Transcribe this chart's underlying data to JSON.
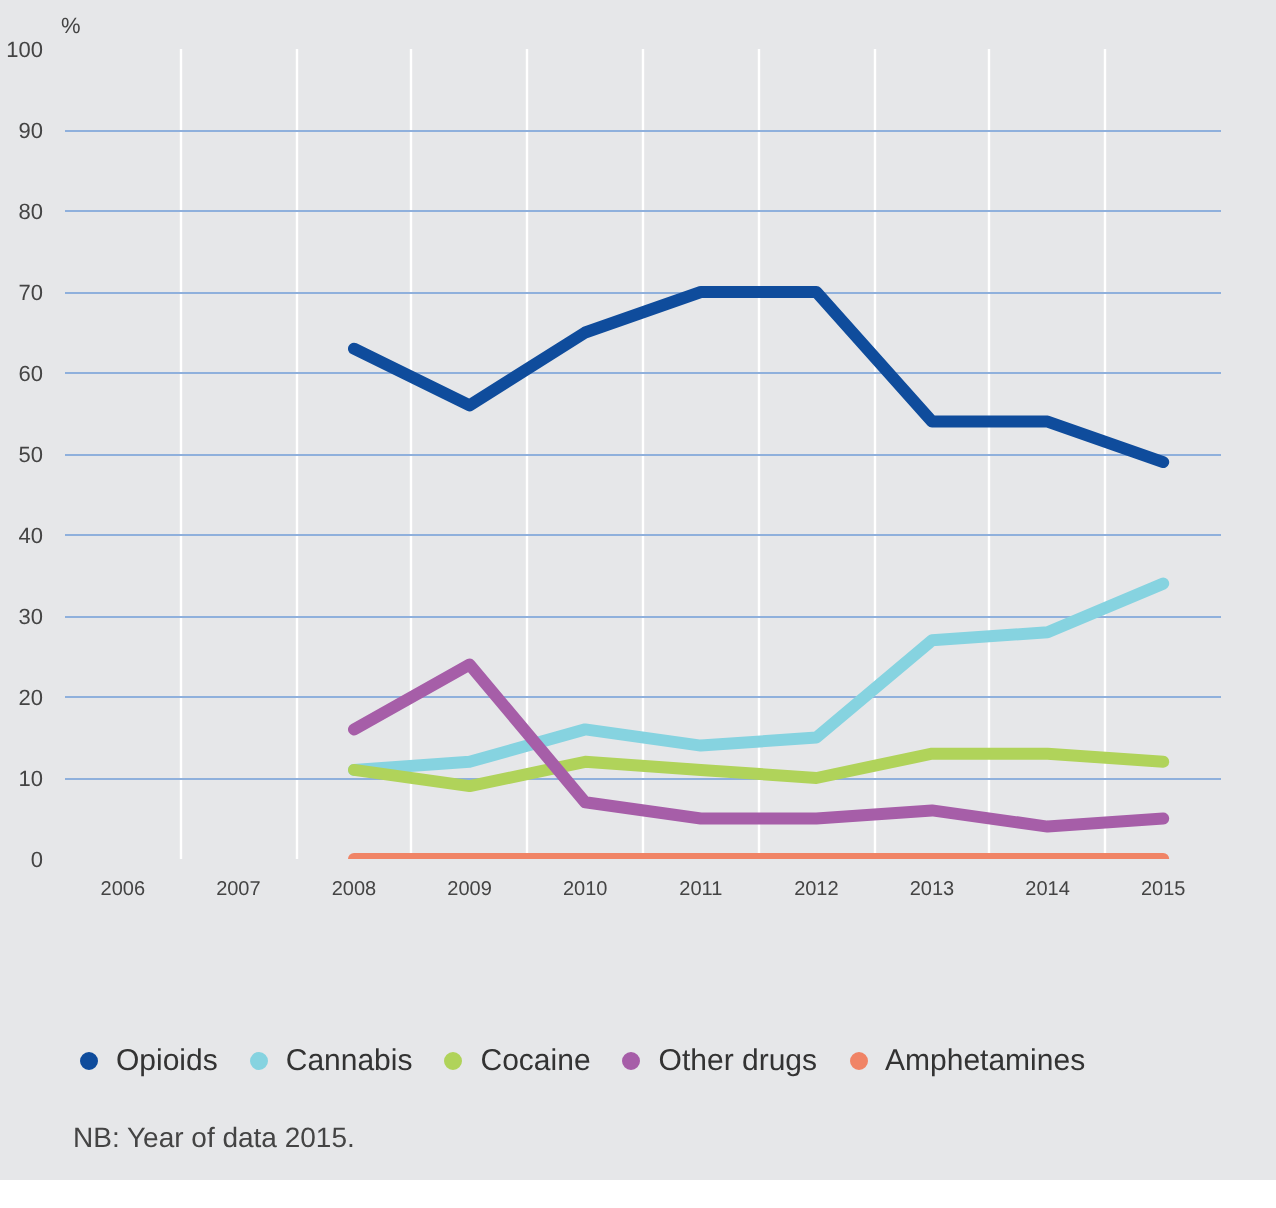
{
  "chart_data": {
    "type": "line",
    "ylabel": "%",
    "categories": [
      "2006",
      "2007",
      "2008",
      "2009",
      "2010",
      "2011",
      "2012",
      "2013",
      "2014",
      "2015"
    ],
    "series": [
      {
        "name": "Opioids",
        "color": "#0f4c9c",
        "values": [
          null,
          null,
          63,
          56,
          65,
          70,
          70,
          54,
          54,
          49
        ]
      },
      {
        "name": "Cannabis",
        "color": "#86d3e0",
        "values": [
          null,
          null,
          11,
          12,
          16,
          14,
          15,
          27,
          28,
          34
        ]
      },
      {
        "name": "Cocaine",
        "color": "#b0d35a",
        "values": [
          null,
          null,
          11,
          9,
          12,
          11,
          10,
          13,
          13,
          12
        ]
      },
      {
        "name": "Other drugs",
        "color": "#a65ea8",
        "values": [
          null,
          null,
          16,
          24,
          7,
          5,
          5,
          6,
          4,
          5
        ]
      },
      {
        "name": "Amphetamines",
        "color": "#f08466",
        "values": [
          null,
          null,
          0,
          0,
          0,
          0,
          0,
          0,
          0,
          0
        ]
      }
    ],
    "ylim": [
      0,
      100
    ],
    "yticks": [
      0,
      10,
      20,
      30,
      40,
      50,
      60,
      70,
      80,
      90,
      100
    ],
    "grid": true,
    "legend": "bottom",
    "marker": "none",
    "line_style": "solid",
    "annotations": [
      "NB: Year of data 2015."
    ]
  }
}
